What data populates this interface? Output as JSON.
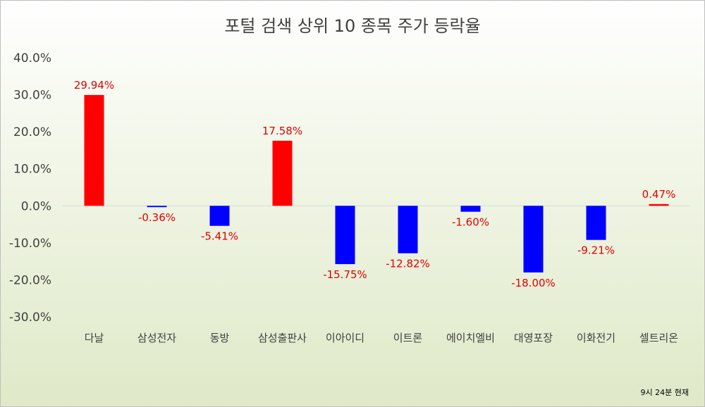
{
  "chart_data": {
    "type": "bar",
    "title": "포털 검색 상위 10 종목 주가 등락율",
    "categories": [
      "다날",
      "삼성전자",
      "동방",
      "삼성출판사",
      "이아이디",
      "이트론",
      "에이치엘비",
      "대영포장",
      "이화전기",
      "셀트리온"
    ],
    "values": [
      29.94,
      -0.36,
      -5.41,
      17.58,
      -15.75,
      -12.82,
      -1.6,
      -18.0,
      -9.21,
      0.47
    ],
    "data_labels": [
      "29.94%",
      "-0.36%",
      "-5.41%",
      "17.58%",
      "-15.75%",
      "-12.82%",
      "-1.60%",
      "-18.00%",
      "-9.21%",
      "0.47%"
    ],
    "y_tick_values": [
      40,
      30,
      20,
      10,
      0,
      -10,
      -20,
      -30
    ],
    "y_tick_labels": [
      "40.0%",
      "30.0%",
      "20.0%",
      "10.0%",
      "0.0%",
      "-10.0%",
      "-20.0%",
      "-30.0%"
    ],
    "ylim": [
      -30,
      40
    ],
    "xlabel": "",
    "ylabel": "",
    "grid": false,
    "legend": "none",
    "colors": {
      "positive": "#ff0000",
      "negative": "#0000ff",
      "data_label": "#e00000",
      "axis_text": "#404040"
    }
  },
  "footnote": "9시 24분 현재"
}
